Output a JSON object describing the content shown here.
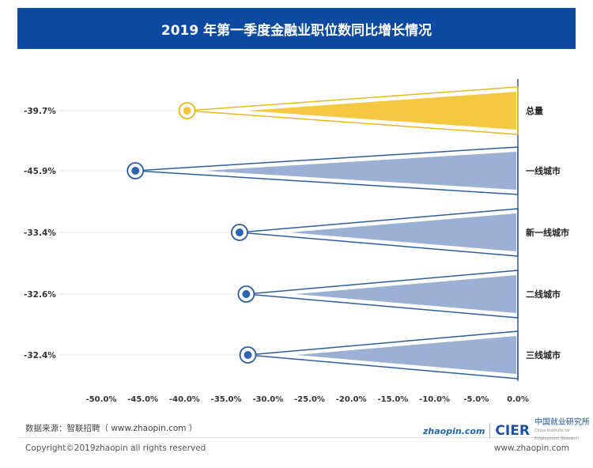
{
  "chart_data": {
    "type": "funnel-wedge",
    "title": "2019 年第一季度金融业职位数同比增长情况",
    "categories": [
      "总量",
      "一线城市",
      "新一线城市",
      "二线城市",
      "三线城市"
    ],
    "values": [
      -39.7,
      -45.9,
      -33.4,
      -32.6,
      -32.4
    ],
    "value_labels": [
      "-39.7%",
      "-45.9%",
      "-33.4%",
      "-32.6%",
      "-32.4%"
    ],
    "x_ticks": [
      "-50.0%",
      "-45.0%",
      "-40.0%",
      "-35.0%",
      "-30.0%",
      "-25.0%",
      "-20.0%",
      "-15.0%",
      "-10.0%",
      "-5.0%",
      "0.0%"
    ],
    "xlim": [
      -50,
      0
    ],
    "colors": {
      "total": "#f5c842",
      "total_line": "#e8b81c",
      "city": "#9bb0d4",
      "city_line": "#2e5d9e",
      "dot": "#2e64b0"
    }
  },
  "footer": {
    "source": "数据来源：智联招聘（ www.zhaopin.com ）",
    "copyright": "Copyright©2019zhaopin all rights reserved",
    "website": "www.zhaopin.com",
    "logo_zhaopin": "zhaopin.com",
    "logo_cier": "CIER",
    "logo_cier_cn": "中国就业研究所",
    "logo_cier_en": "China Institute for Employment Research"
  }
}
